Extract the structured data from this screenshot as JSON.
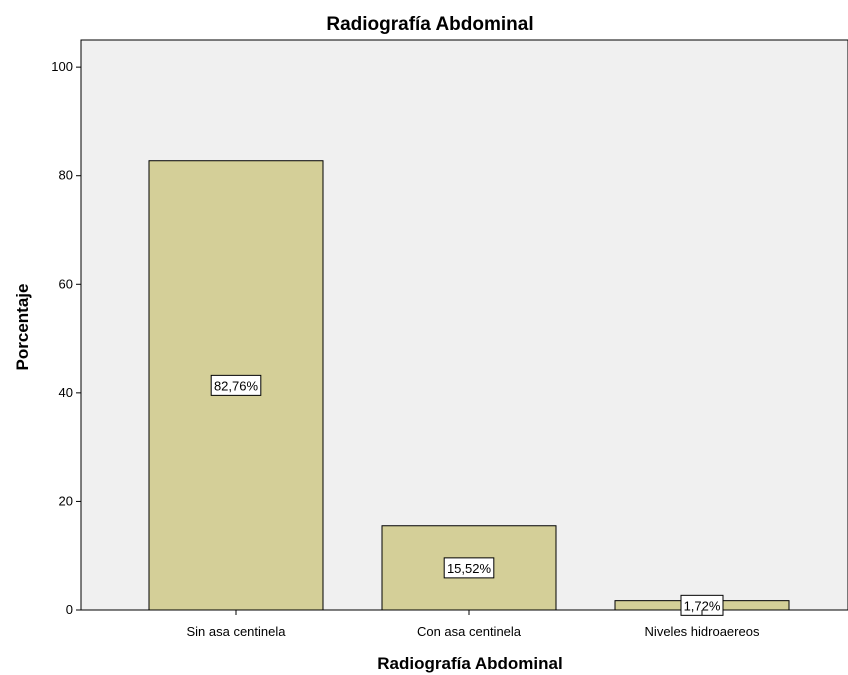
{
  "chart_data": {
    "type": "bar",
    "title": "Radiografía Abdominal",
    "xlabel": "Radiografía Abdominal",
    "ylabel": "Porcentaje",
    "categories": [
      "Sin asa centinela",
      "Con asa centinela",
      "Niveles hidroaereos"
    ],
    "values": [
      82.76,
      15.52,
      1.72
    ],
    "data_labels": [
      "82,76%",
      "15,52%",
      "1,72%"
    ],
    "ylim": [
      0,
      100
    ],
    "yticks": [
      0,
      20,
      40,
      60,
      80,
      100
    ],
    "grid": false,
    "legend": "none",
    "colors": {
      "bar_fill": "#d4cf98",
      "bar_stroke": "#000000",
      "plot_bg": "#f0f0f0"
    }
  }
}
